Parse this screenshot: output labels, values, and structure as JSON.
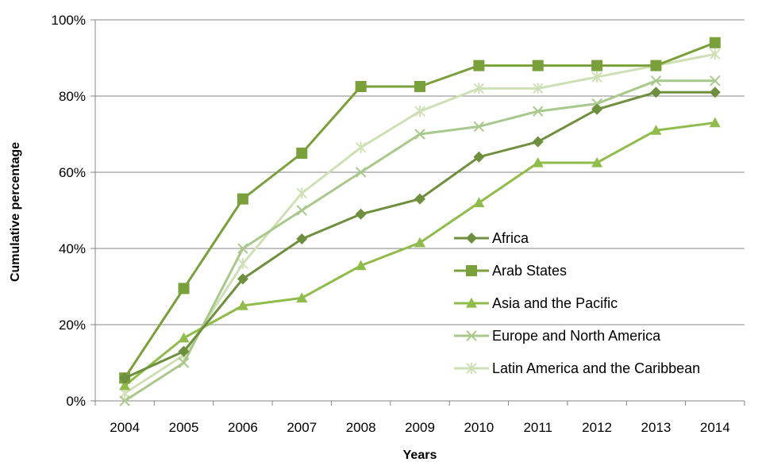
{
  "chart_data": {
    "type": "line",
    "xlabel": "Years",
    "ylabel": "Cumulative percentage",
    "x": [
      "2004",
      "2005",
      "2006",
      "2007",
      "2008",
      "2009",
      "2010",
      "2011",
      "2012",
      "2013",
      "2014"
    ],
    "ylim": [
      0,
      100
    ],
    "yticks": [
      "0%",
      "20%",
      "40%",
      "60%",
      "80%",
      "100%"
    ],
    "ytick_values": [
      0,
      20,
      40,
      60,
      80,
      100
    ],
    "grid": "horizontal",
    "legend_position": "right-inside",
    "series": [
      {
        "name": "Africa",
        "marker": "diamond",
        "color": "#6e8f3d",
        "values": [
          6,
          13,
          32,
          42.5,
          49,
          53,
          64,
          68,
          76.5,
          81,
          81
        ]
      },
      {
        "name": "Arab States",
        "marker": "square",
        "color": "#7aa03c",
        "values": [
          6,
          29.5,
          53,
          65,
          82.5,
          82.5,
          88,
          88,
          88,
          88,
          94
        ]
      },
      {
        "name": "Asia and the Pacific",
        "marker": "triangle",
        "color": "#8fbc4b",
        "values": [
          4,
          16.5,
          25,
          27,
          35.5,
          41.5,
          52,
          62.5,
          62.5,
          71,
          73
        ]
      },
      {
        "name": "Europe and North America",
        "marker": "x",
        "color": "#a9c88b",
        "values": [
          0,
          10,
          40,
          50,
          60,
          70,
          72,
          76,
          78,
          84,
          84
        ]
      },
      {
        "name": "Latin America and the Caribbean",
        "marker": "star",
        "color": "#cfe0b6",
        "values": [
          2,
          12,
          36,
          54.5,
          66.5,
          76,
          82,
          82,
          85,
          88,
          91
        ]
      }
    ]
  }
}
